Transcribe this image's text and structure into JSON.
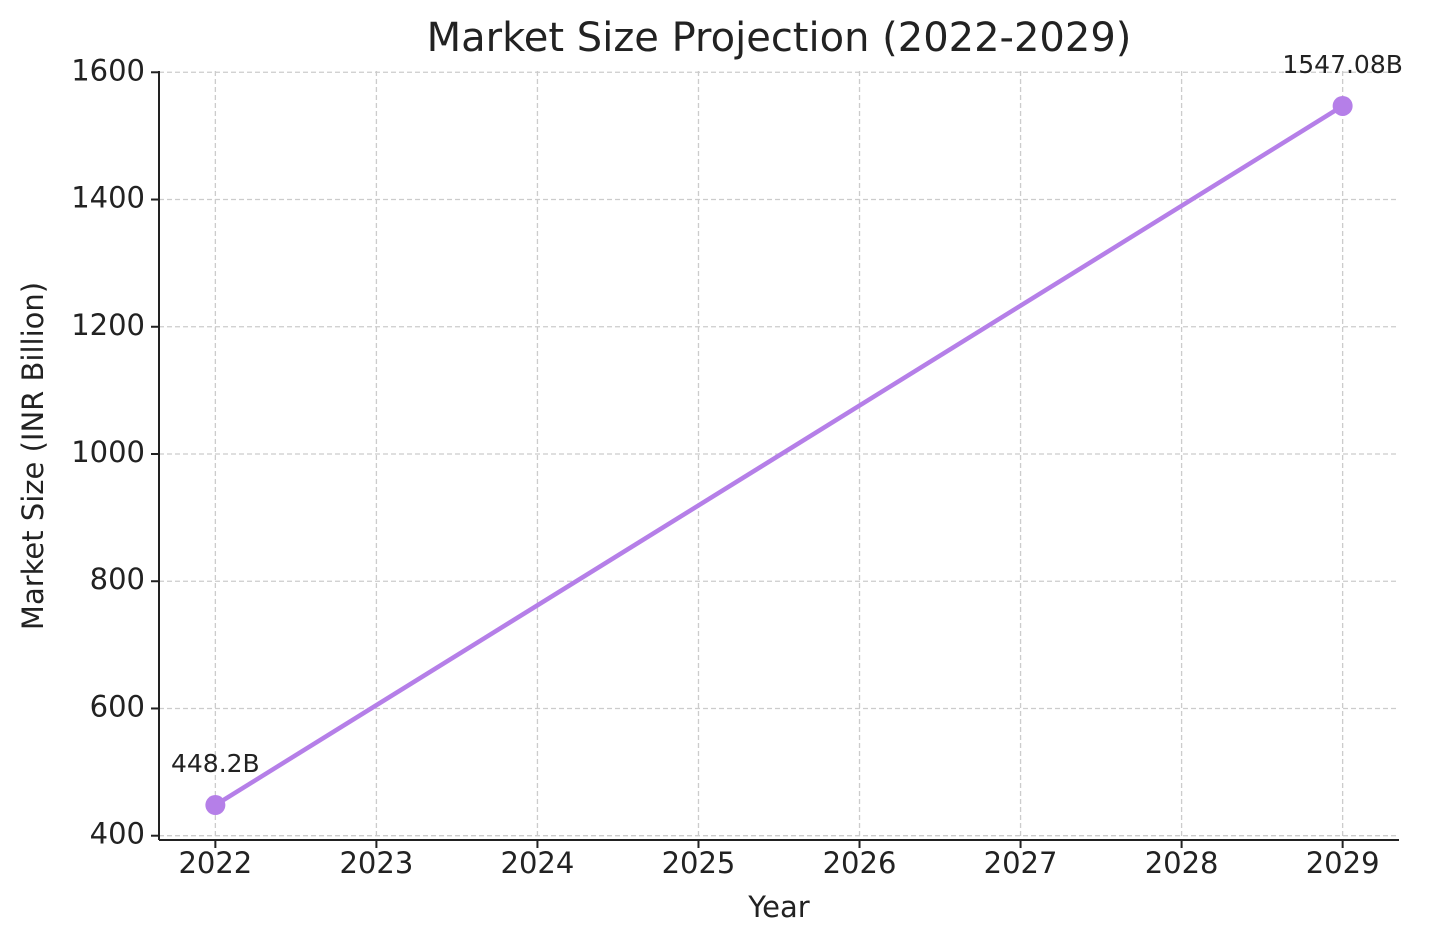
{
  "chart_data": {
    "type": "line",
    "title": "Market Size Projection (2022-2029)",
    "x_label": "Year",
    "y_label": "Market Size (INR Billion)",
    "x": [
      2022,
      2029
    ],
    "values": [
      448.2,
      1547.08
    ],
    "value_labels": [
      "448.2B",
      "1547.08B"
    ],
    "color": "#b57fe8",
    "xlim": [
      2021.65,
      2029.35
    ],
    "xticks": [
      2022,
      2023,
      2024,
      2025,
      2026,
      2027,
      2028,
      2029
    ],
    "ylim": [
      393.26,
      1602.02
    ],
    "yticks": [
      400,
      600,
      800,
      1000,
      1200,
      1400,
      1600
    ],
    "grid": true
  }
}
